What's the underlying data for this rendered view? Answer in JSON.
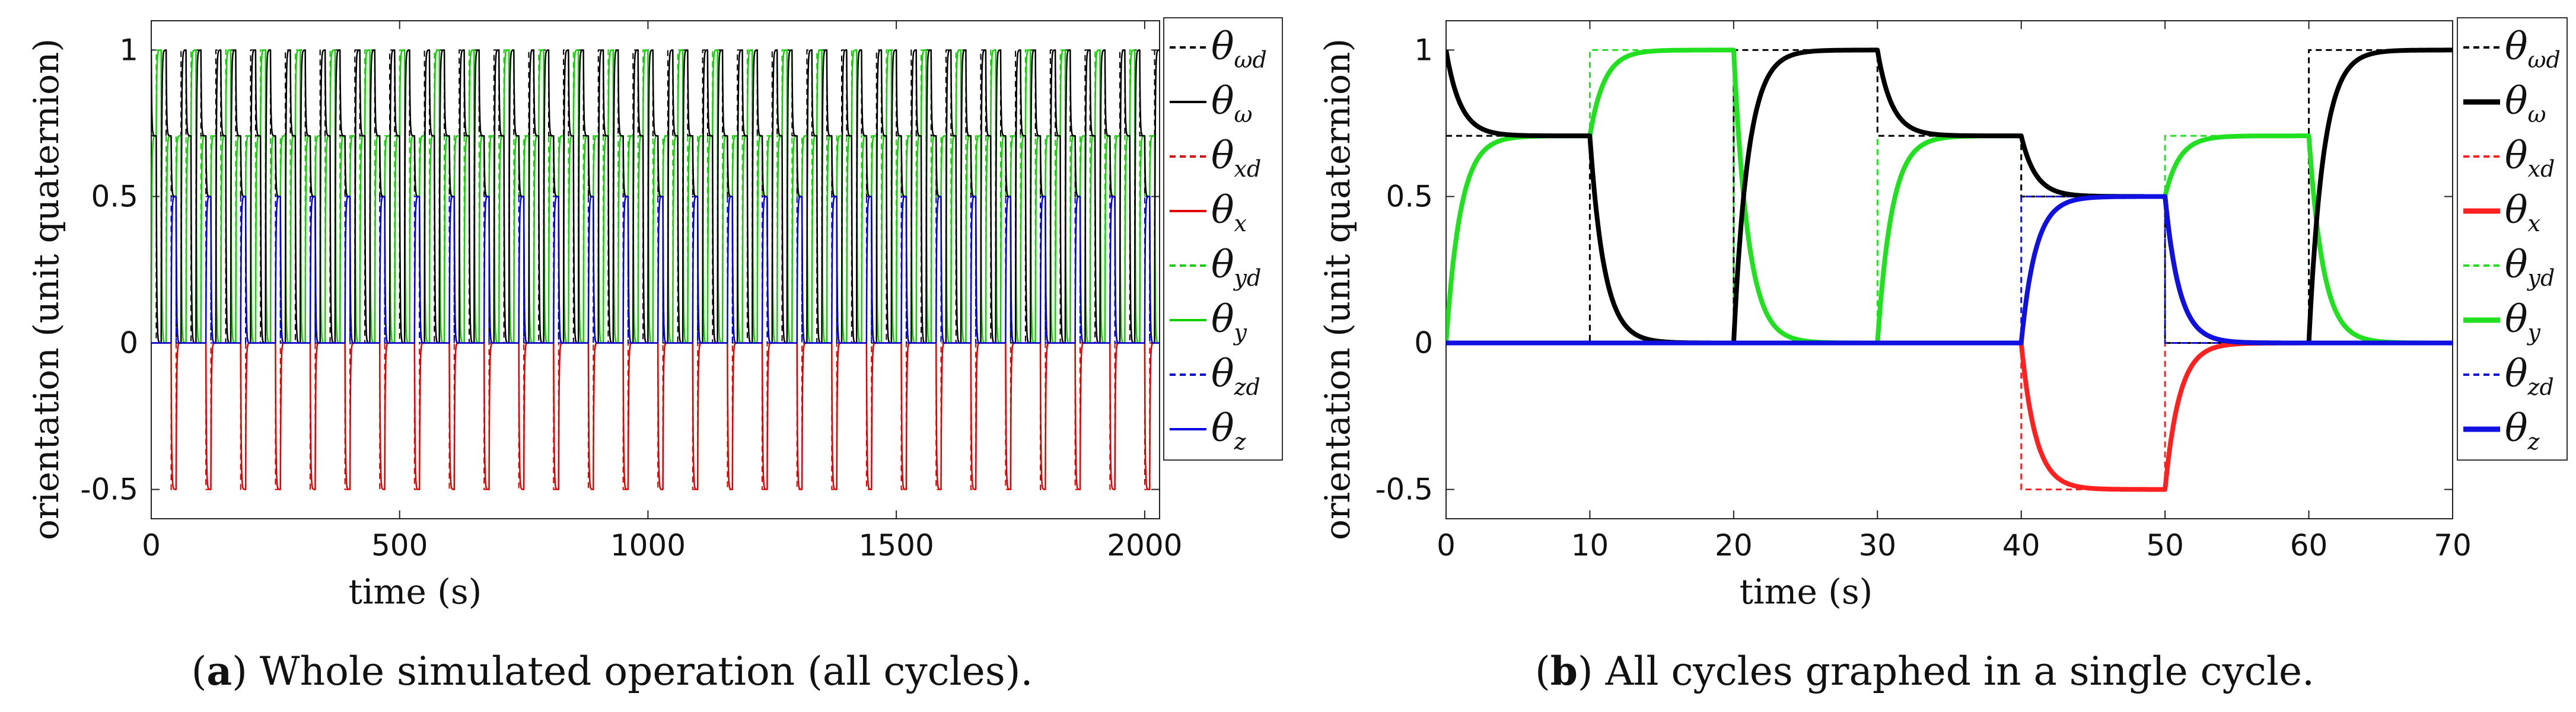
{
  "chart_data": [
    {
      "id": "a",
      "type": "line",
      "caption_letter": "a",
      "caption_text": ") Whole simulated operation (all cycles).",
      "caption_open": "(",
      "xlabel": "time (s)",
      "ylabel": "orientation (unit quaternion)",
      "xlim": [
        0,
        2030
      ],
      "ylim": [
        -0.6,
        1.1
      ],
      "xticks": [
        0,
        500,
        1000,
        1500,
        2000
      ],
      "xtick_labels": [
        "0",
        "500",
        "1000",
        "1500",
        "2000"
      ],
      "yticks": [
        1,
        0.5,
        0,
        -0.5
      ],
      "ytick_labels": [
        "1",
        "0.5",
        "0",
        "-0.5"
      ],
      "cycle_period_s": 70,
      "num_cycles": 29,
      "tau_s": 1.0,
      "legend": [
        {
          "base": "θ",
          "sub": "ωd",
          "color": "#000000",
          "style": "dashed"
        },
        {
          "base": "θ",
          "sub": "ω",
          "color": "#000000",
          "style": "solid"
        },
        {
          "base": "θ",
          "sub": "xd",
          "color": "#e00000",
          "style": "dashed"
        },
        {
          "base": "θ",
          "sub": "x",
          "color": "#e00000",
          "style": "solid"
        },
        {
          "base": "θ",
          "sub": "yd",
          "color": "#10d000",
          "style": "dashed"
        },
        {
          "base": "θ",
          "sub": "y",
          "color": "#10d000",
          "style": "solid"
        },
        {
          "base": "θ",
          "sub": "zd",
          "color": "#0000e0",
          "style": "dashed"
        },
        {
          "base": "θ",
          "sub": "z",
          "color": "#0000e0",
          "style": "solid"
        }
      ]
    },
    {
      "id": "b",
      "type": "line",
      "caption_letter": "b",
      "caption_text": ") All cycles graphed in a single cycle.",
      "caption_open": "(",
      "xlabel": "time (s)",
      "ylabel": "orientation (unit quaternion)",
      "xlim": [
        0,
        70
      ],
      "ylim": [
        -0.6,
        1.1
      ],
      "xticks": [
        0,
        10,
        20,
        30,
        40,
        50,
        60,
        70
      ],
      "xtick_labels": [
        "0",
        "10",
        "20",
        "30",
        "40",
        "50",
        "60",
        "70"
      ],
      "yticks": [
        1,
        0.5,
        0,
        -0.5
      ],
      "ytick_labels": [
        "1",
        "0.5",
        "0",
        "-0.5"
      ],
      "tau_s": 1.0,
      "segment_starts_s": [
        0,
        10,
        20,
        30,
        40,
        50,
        60
      ],
      "initial_state": {
        "w": 1.0,
        "x": 0.0,
        "y": 0.0,
        "z": 0.0
      },
      "desired_w": [
        0.7071,
        0.0,
        1.0,
        0.7071,
        0.5,
        0.0,
        1.0
      ],
      "desired_x": [
        0.0,
        0.0,
        0.0,
        0.0,
        -0.5,
        0.0,
        0.0
      ],
      "desired_y": [
        0.7071,
        1.0,
        0.0,
        0.7071,
        0.5,
        0.7071,
        0.0
      ],
      "desired_z": [
        0.0,
        0.0,
        0.0,
        0.0,
        0.5,
        0.0,
        0.0
      ],
      "legend": [
        {
          "base": "θ",
          "sub": "ωd",
          "color": "#000000",
          "style": "dashed"
        },
        {
          "base": "θ",
          "sub": "ω",
          "color": "#000000",
          "style": "solid"
        },
        {
          "base": "θ",
          "sub": "xd",
          "color": "#ff2020",
          "style": "dashed"
        },
        {
          "base": "θ",
          "sub": "x",
          "color": "#ff2020",
          "style": "solid"
        },
        {
          "base": "θ",
          "sub": "yd",
          "color": "#20e020",
          "style": "dashed"
        },
        {
          "base": "θ",
          "sub": "y",
          "color": "#20e020",
          "style": "solid"
        },
        {
          "base": "θ",
          "sub": "zd",
          "color": "#1010e0",
          "style": "dashed"
        },
        {
          "base": "θ",
          "sub": "z",
          "color": "#1010e0",
          "style": "solid"
        }
      ]
    }
  ]
}
